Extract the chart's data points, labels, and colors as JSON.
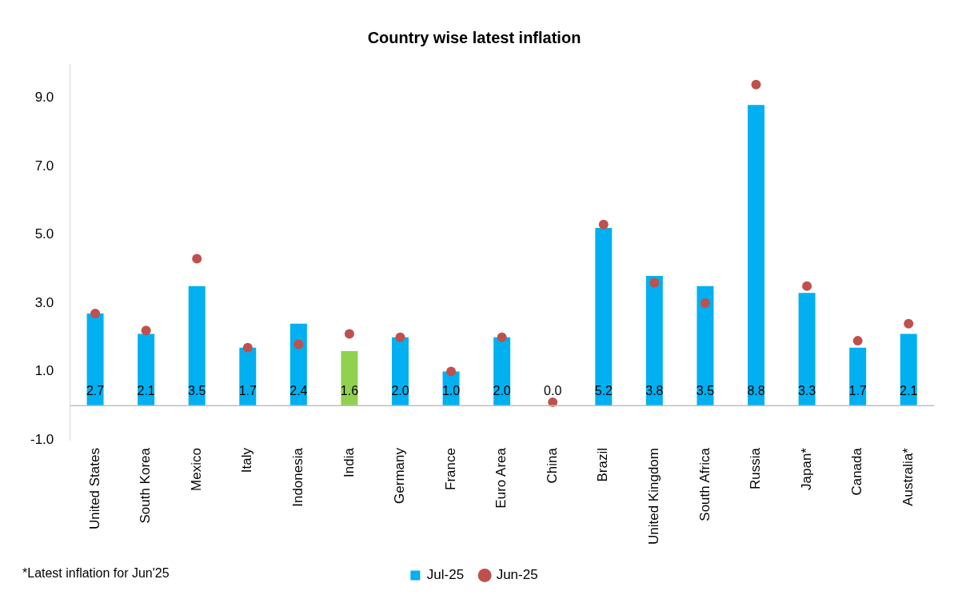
{
  "chart_data": {
    "type": "bar",
    "title": "Country wise latest inflation",
    "categories": [
      "United States",
      "South Korea",
      "Mexico",
      "Italy",
      "Indonesia",
      "India",
      "Germany",
      "France",
      "Euro Area",
      "China",
      "Brazil",
      "United Kingdom",
      "South Africa",
      "Russia",
      "Japan*",
      "Canada",
      "Australia*"
    ],
    "series": [
      {
        "name": "Jul-25",
        "type": "bar",
        "color": "#00b0f0",
        "colors": [
          "#00b0f0",
          "#00b0f0",
          "#00b0f0",
          "#00b0f0",
          "#00b0f0",
          "#92d050",
          "#00b0f0",
          "#00b0f0",
          "#00b0f0",
          "#00b0f0",
          "#00b0f0",
          "#00b0f0",
          "#00b0f0",
          "#00b0f0",
          "#00b0f0",
          "#00b0f0",
          "#00b0f0"
        ],
        "values": [
          2.7,
          2.1,
          3.5,
          1.7,
          2.4,
          1.6,
          2.0,
          1.0,
          2.0,
          0.0,
          5.2,
          3.8,
          3.5,
          8.8,
          3.3,
          1.7,
          2.1
        ],
        "value_labels": [
          "2.7",
          "2.1",
          "3.5",
          "1.7",
          "2.4",
          "1.6",
          "2.0",
          "1.0",
          "2.0",
          "0.0",
          "5.2",
          "3.8",
          "3.5",
          "8.8",
          "3.3",
          "1.7",
          "2.1"
        ]
      },
      {
        "name": "Jun-25",
        "type": "scatter",
        "color": "#c0504d",
        "marker": "circle",
        "x": [
          "United States",
          "South Korea",
          "Mexico",
          "Italy",
          "Indonesia",
          "India",
          "Germany",
          "France",
          "Euro Area",
          "China",
          "Brazil",
          "United Kingdom",
          "South Africa",
          "Russia",
          "Japan*",
          "Canada",
          "Australia*"
        ],
        "values": [
          2.7,
          2.2,
          4.3,
          1.7,
          1.8,
          2.1,
          2.0,
          1.0,
          2.0,
          0.1,
          5.3,
          3.6,
          3.0,
          9.4,
          3.5,
          1.9,
          2.4
        ]
      }
    ],
    "ylim": [
      -1,
      10
    ],
    "yticks": [
      {
        "value": -1,
        "label": "-1.0"
      },
      {
        "value": 1,
        "label": "1.0"
      },
      {
        "value": 3,
        "label": "3.0"
      },
      {
        "value": 5,
        "label": "5.0"
      },
      {
        "value": 7,
        "label": "7.0"
      },
      {
        "value": 9,
        "label": "9.0"
      }
    ],
    "grid": false,
    "legend": "bottom",
    "ref_lines": [
      {
        "axis": "y",
        "value": 0,
        "color": "#bfbfbf"
      }
    ],
    "annotations": [
      "*Latest inflation for Jun'25"
    ]
  }
}
